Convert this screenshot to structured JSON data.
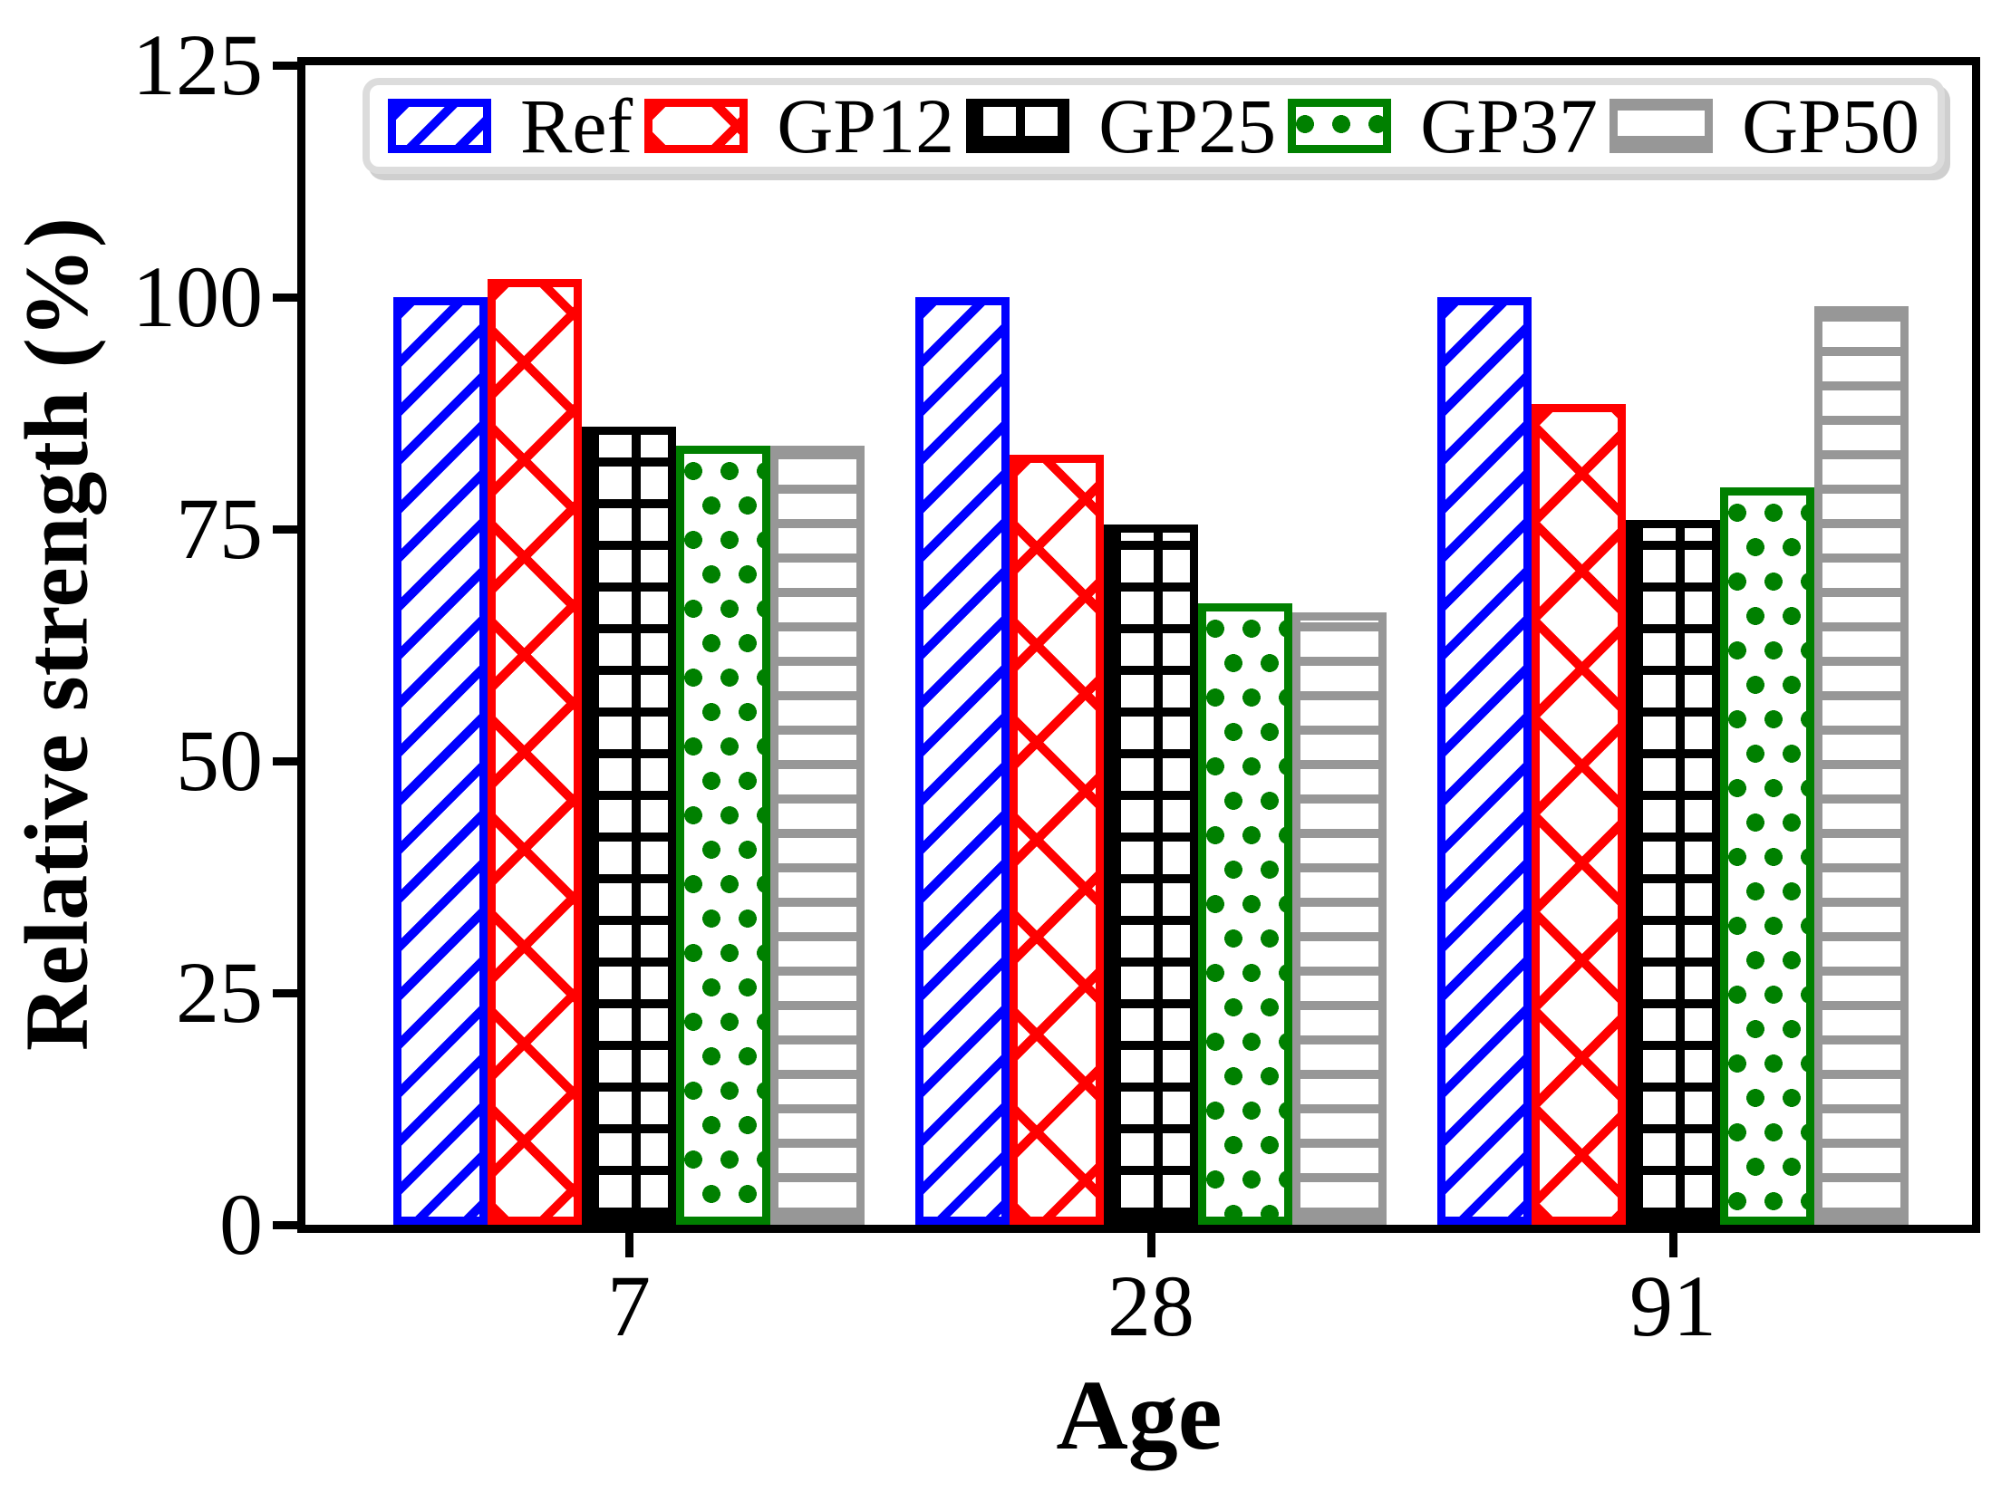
{
  "chart_data": {
    "type": "bar",
    "title": "",
    "xlabel": "Age",
    "ylabel": "Relative strength (%)",
    "ylim": [
      0,
      125
    ],
    "yticks": [
      0,
      25,
      50,
      75,
      100,
      125
    ],
    "categories": [
      "7",
      "28",
      "91"
    ],
    "series": [
      {
        "name": "Ref",
        "color": "#0000ff",
        "hatch": "diagonal",
        "values": [
          100,
          100,
          100
        ]
      },
      {
        "name": "GP12",
        "color": "#ff0000",
        "hatch": "cross-diagonal",
        "values": [
          102,
          83,
          88.5
        ]
      },
      {
        "name": "GP25",
        "color": "#000000",
        "hatch": "grid",
        "values": [
          86,
          75.5,
          76
        ]
      },
      {
        "name": "GP37",
        "color": "#008000",
        "hatch": "dots",
        "values": [
          84,
          67,
          79.5
        ]
      },
      {
        "name": "GP50",
        "color": "#979797",
        "hatch": "horizontal",
        "values": [
          84,
          66,
          99
        ]
      }
    ],
    "legend": {
      "labels": [
        "Ref",
        "GP12",
        "GP25",
        "GP37",
        "GP50"
      ],
      "position": "upper center",
      "border_color": "#dcdcdc"
    },
    "grid": false,
    "spine_color": "#000000",
    "background": "#ffffff"
  }
}
